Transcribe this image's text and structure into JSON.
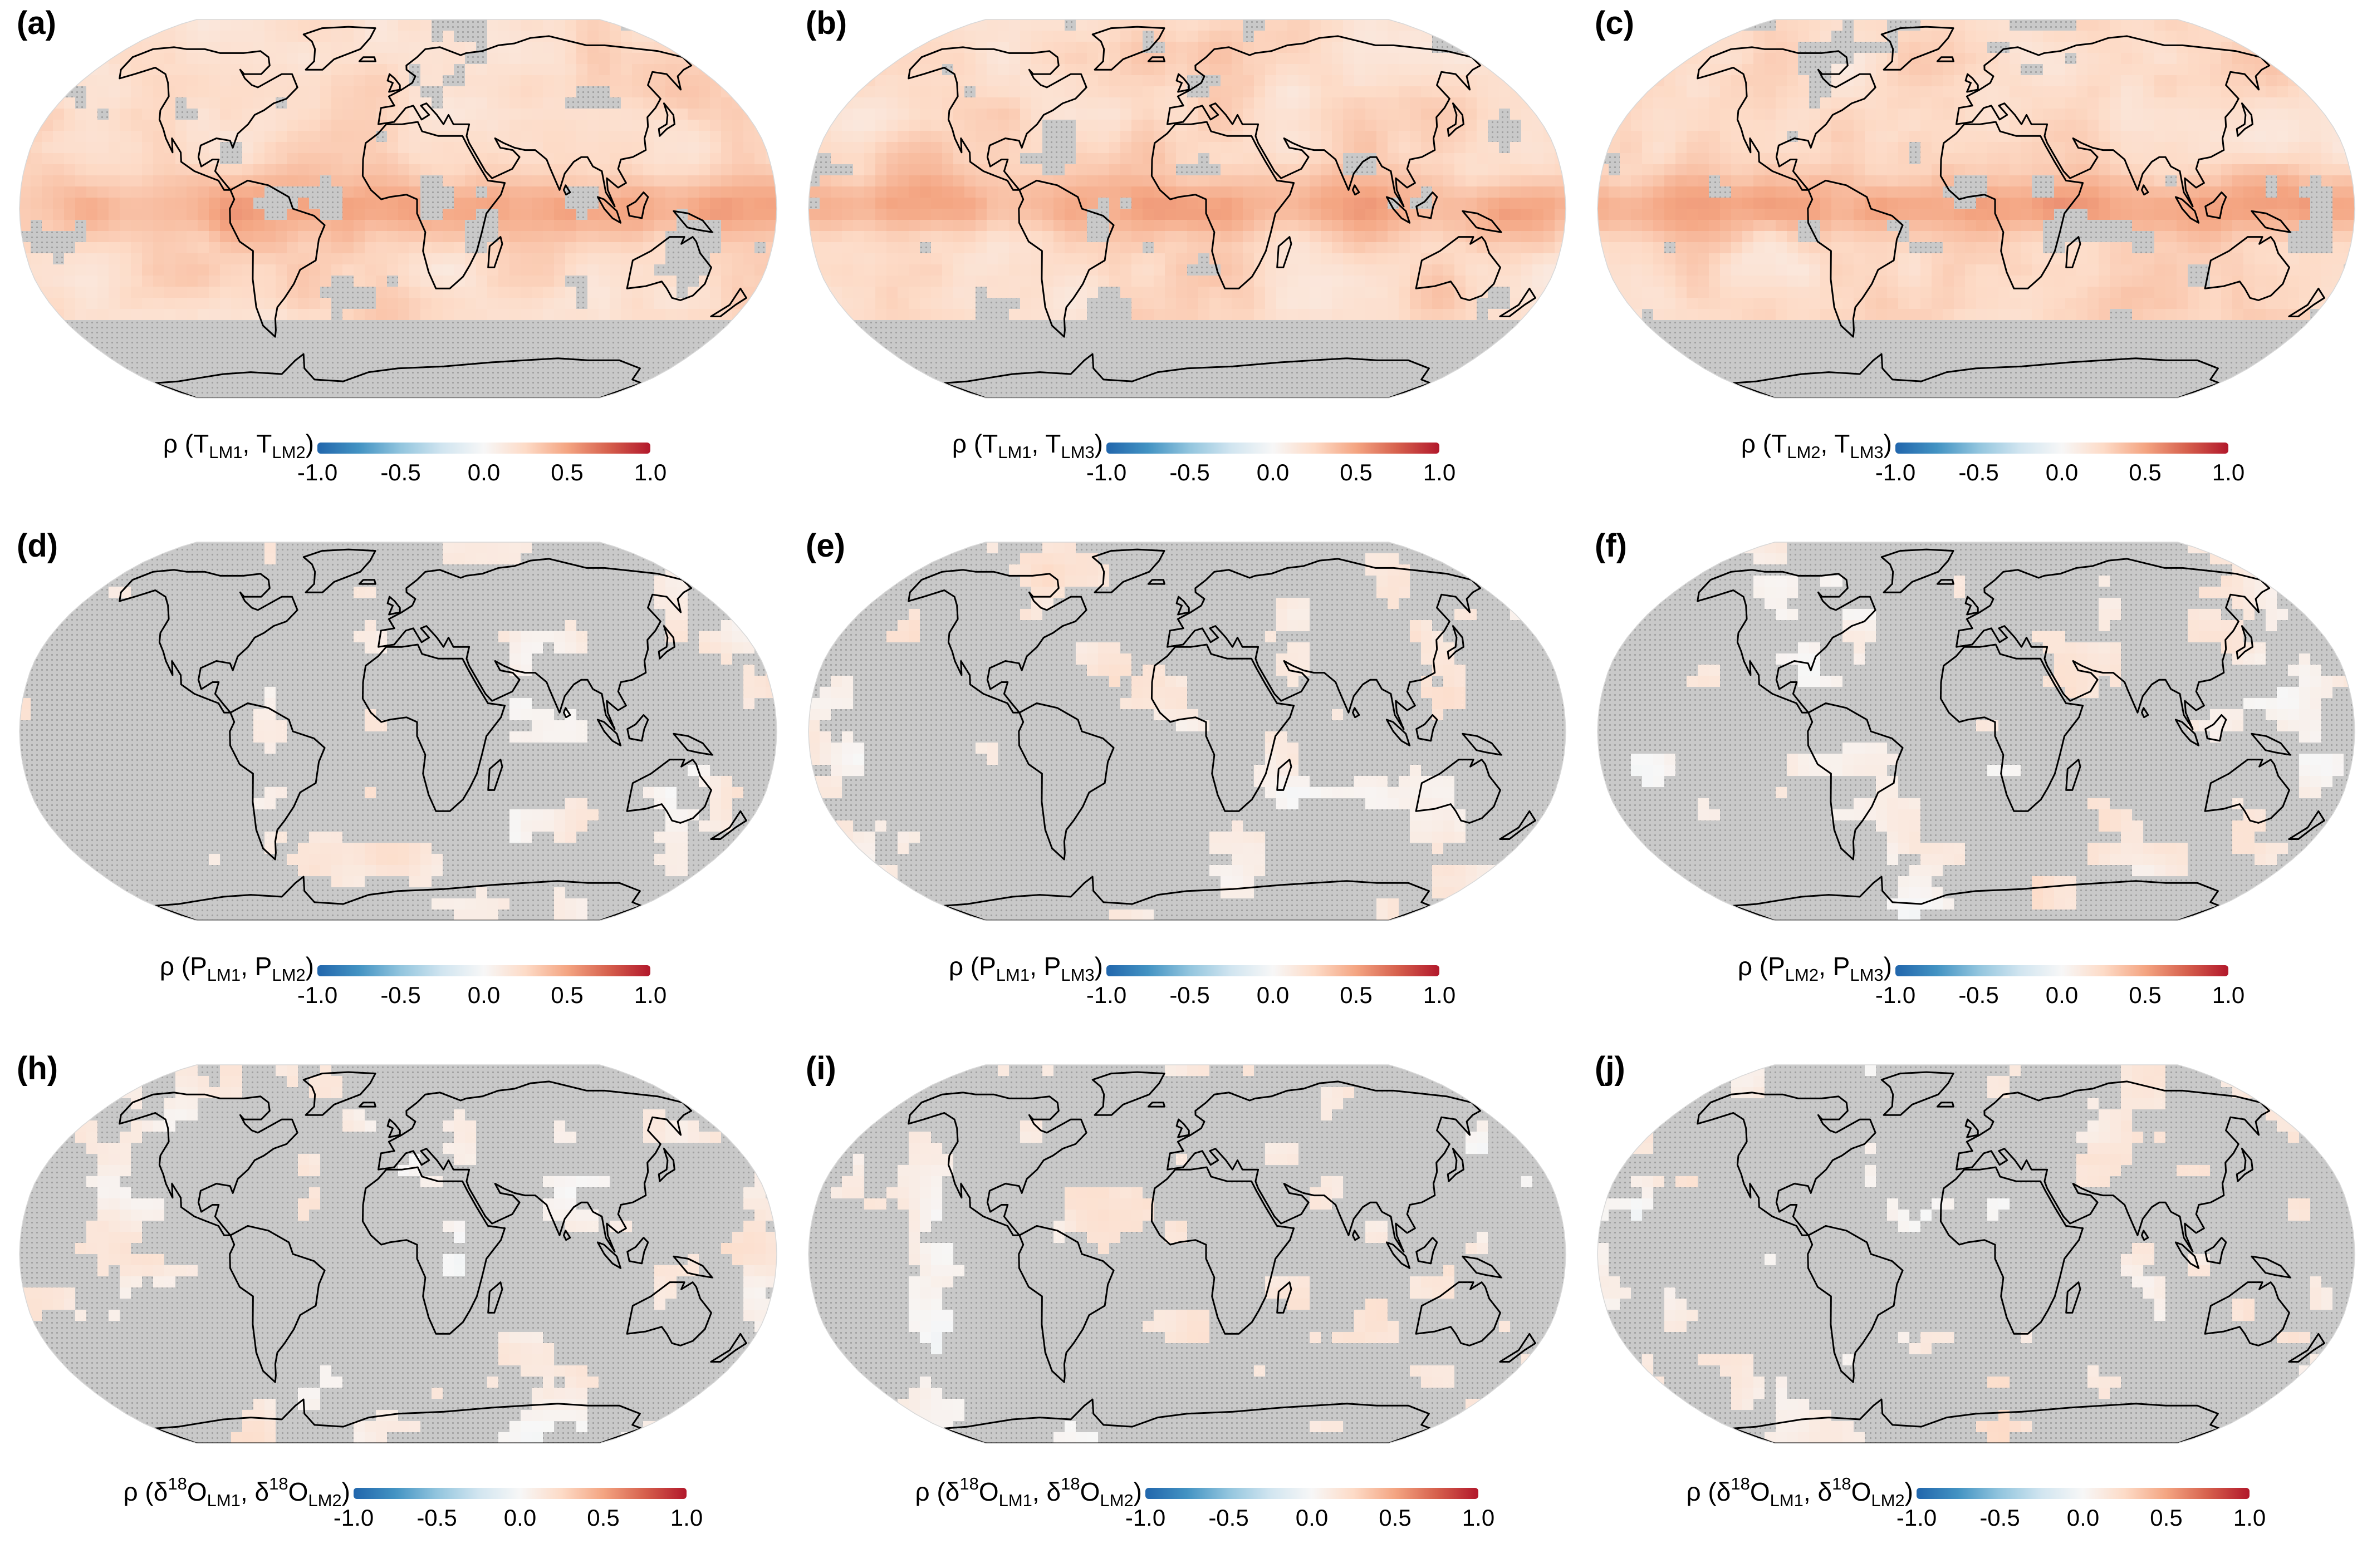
{
  "colormap": {
    "stops": [
      "#2166ac",
      "#4393c3",
      "#92c5de",
      "#d1e5f0",
      "#f7f7f7",
      "#fddbc7",
      "#f4a582",
      "#d6604d",
      "#b2182b"
    ],
    "insignificant_fill": "#c9c9c9",
    "stipple_color": "#a0a0a0",
    "land_outline": "#000000"
  },
  "colorbar_ticks": [
    "-1.0",
    "-0.5",
    "0.0",
    "0.5",
    "1.0"
  ],
  "panels": [
    {
      "label": "(a)",
      "var": "T",
      "sup": "",
      "m1": "LM1",
      "m2": "LM2",
      "level": 0.24,
      "sig": 0.8
    },
    {
      "label": "(b)",
      "var": "T",
      "sup": "",
      "m1": "LM1",
      "m2": "LM3",
      "level": 0.24,
      "sig": 0.8
    },
    {
      "label": "(c)",
      "var": "T",
      "sup": "",
      "m1": "LM2",
      "m2": "LM3",
      "level": 0.24,
      "sig": 0.8
    },
    {
      "label": "(d)",
      "var": "P",
      "sup": "",
      "m1": "LM1",
      "m2": "LM2",
      "level": 0.1,
      "sig": 0.25
    },
    {
      "label": "(e)",
      "var": "P",
      "sup": "",
      "m1": "LM1",
      "m2": "LM3",
      "level": 0.1,
      "sig": 0.25
    },
    {
      "label": "(f)",
      "var": "P",
      "sup": "",
      "m1": "LM2",
      "m2": "LM3",
      "level": 0.1,
      "sig": 0.25
    },
    {
      "label": "(h)",
      "var": "O",
      "sup": "18",
      "m1": "LM1",
      "m2": "LM2",
      "level": 0.1,
      "sig": 0.25
    },
    {
      "label": "(i)",
      "var": "O",
      "sup": "18",
      "m1": "LM1",
      "m2": "LM2",
      "level": 0.1,
      "sig": 0.25
    },
    {
      "label": "(j)",
      "var": "O",
      "sup": "18",
      "m1": "LM1",
      "m2": "LM2",
      "level": 0.1,
      "sig": 0.25
    }
  ]
}
